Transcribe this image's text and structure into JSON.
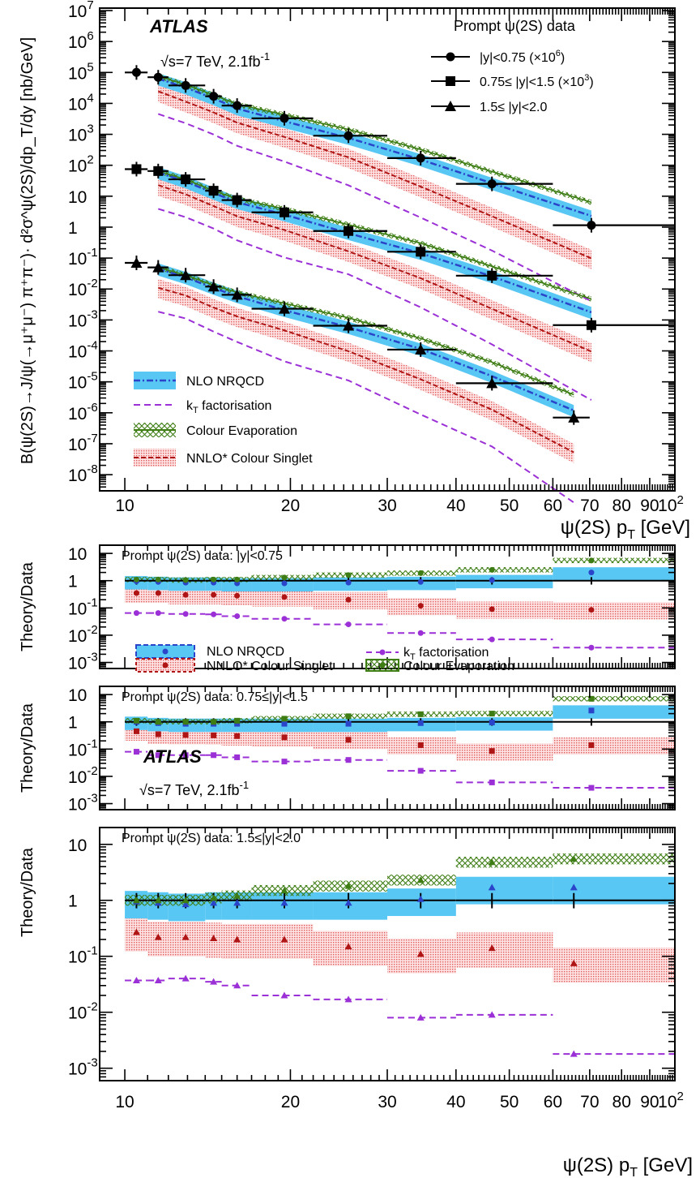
{
  "colors": {
    "nrqcd_fill": "#58c7f3",
    "nrqcd_line": "#2a45c9",
    "kt_line": "#9b30d6",
    "ceva_line": "#3d7d14",
    "cs_fill": "#f3a4a4",
    "cs_line": "#b01515",
    "data": "#000000"
  },
  "ticks": {
    "x": [
      "10",
      "20",
      "30",
      "40",
      "50",
      "60",
      "70",
      "80",
      "90",
      "10"
    ],
    "x_sup": "2",
    "y_main": [
      {
        "b": "10",
        "s": "7"
      },
      {
        "b": "10",
        "s": "6"
      },
      {
        "b": "10",
        "s": "5"
      },
      {
        "b": "10",
        "s": "4"
      },
      {
        "b": "10",
        "s": "3"
      },
      {
        "b": "10",
        "s": "2"
      },
      {
        "b": "10",
        "s": ""
      },
      {
        "b": "1",
        "s": ""
      },
      {
        "b": "10",
        "s": "-1"
      },
      {
        "b": "10",
        "s": "-2"
      },
      {
        "b": "10",
        "s": "-3"
      },
      {
        "b": "10",
        "s": "-4"
      },
      {
        "b": "10",
        "s": "-5"
      },
      {
        "b": "10",
        "s": "-6"
      },
      {
        "b": "10",
        "s": "-7"
      },
      {
        "b": "10",
        "s": "-8"
      }
    ],
    "y_ratio": [
      {
        "b": "10",
        "s": ""
      },
      {
        "b": "1",
        "s": ""
      },
      {
        "b": "10",
        "s": "-1"
      },
      {
        "b": "10",
        "s": "-2"
      },
      {
        "b": "10",
        "s": "-3"
      }
    ]
  },
  "main": {
    "experiment": "ATLAS",
    "energy_a": "√s=7 TeV, 2.1fb",
    "energy_sup": "-1",
    "ylabel": "B(ψ(2S)→J/ψ(→μ⁺μ⁻) π⁺π⁻)· d²σ^ψ(2S)/dp_T/dy [nb/GeV]",
    "xlabel_a": "ψ(2S) p",
    "xlabel_sub": "T",
    "xlabel_b": " [GeV]",
    "legend_data": {
      "title": "Prompt ψ(2S) data",
      "r1": "|y|<0.75 (×10",
      "r1_sup": "6",
      "r1_end": ")",
      "r2": "0.75≤ |y|<1.5 (×10",
      "r2_sup": "3",
      "r2_end": ")",
      "r3": "1.5≤ |y|<2.0"
    },
    "legend_theory": {
      "nrqcd": "NLO NRQCD",
      "kt_a": "k",
      "kt_sub": "T",
      "kt_b": " factorisation",
      "ceva": "Colour Evaporation",
      "cs": "NNLO* Colour Singlet"
    }
  },
  "ratio": {
    "ylabel": "Theory/Data",
    "panel1_label": "Prompt ψ(2S) data: |y|<0.75",
    "panel2_label": "Prompt ψ(2S) data: 0.75≤|y|<1.5",
    "panel3_label": "Prompt ψ(2S) data: 1.5≤|y|<2.0",
    "legend": {
      "nrqcd": "NLO NRQCD",
      "cs": "NNLO* Colour Singlet",
      "kt_a": "k",
      "kt_sub": "T",
      "kt_b": " factorisation",
      "ceva": "Colour Evaporation"
    },
    "experiment": "ATLAS",
    "energy_a": "√s=7 TeV, 2.1fb",
    "energy_sup": "-1"
  },
  "chart_data": [
    {
      "type": "scatter",
      "title": "",
      "xlabel": "ψ(2S) p_T [GeV]",
      "ylabel": "B(ψ(2S)→J/ψ(→μ⁺μ⁻) π⁺π⁻)· d²σ^ψ(2S)/dp_T/dy [nb/GeV]",
      "xscale": "log",
      "yscale": "log",
      "xlim": [
        9,
        100
      ],
      "ylim": [
        3e-09,
        12000000.0
      ],
      "legend_placement": "top-right (data), bottom-left (theory)",
      "bins": [
        [
          10,
          11
        ],
        [
          11,
          12
        ],
        [
          12,
          14
        ],
        [
          14,
          15
        ],
        [
          15,
          17
        ],
        [
          17,
          22
        ],
        [
          22,
          30
        ],
        [
          30,
          40
        ],
        [
          40,
          60
        ],
        [
          60,
          100
        ]
      ],
      "bins_last_region": [
        [
          10,
          11
        ],
        [
          11,
          12
        ],
        [
          12,
          14
        ],
        [
          14,
          15
        ],
        [
          15,
          17
        ],
        [
          17,
          22
        ],
        [
          22,
          30
        ],
        [
          30,
          40
        ],
        [
          40,
          60
        ],
        [
          60,
          70
        ]
      ],
      "series": [
        {
          "name": "|y|<0.75 (×10^6)",
          "marker": "circle",
          "x": [
            10.5,
            11.5,
            12.9,
            14.5,
            16.0,
            19.5,
            25.5,
            34.5,
            46.5,
            70.5
          ],
          "y": [
            100000.0,
            70000.0,
            38000.0,
            17000.0,
            8500.0,
            3300.0,
            900.0,
            170.0,
            25.0,
            1.15
          ]
        },
        {
          "name": "0.75≤ |y|<1.5 (×10^3)",
          "marker": "square",
          "x": [
            10.5,
            11.5,
            12.9,
            14.5,
            16.0,
            19.5,
            25.5,
            34.5,
            46.5,
            70.5
          ],
          "y": [
            75,
            65,
            35,
            15,
            7.5,
            3.0,
            0.75,
            0.16,
            0.027,
            0.00068
          ]
        },
        {
          "name": "1.5≤ |y|<2.0",
          "marker": "triangle",
          "x": [
            10.5,
            11.5,
            12.9,
            14.5,
            16.0,
            19.5,
            25.5,
            34.5,
            46.5,
            65.5
          ],
          "y": [
            0.07,
            0.05,
            0.028,
            0.012,
            0.0065,
            0.0023,
            0.00065,
            0.00011,
            9e-06,
            7e-07
          ]
        }
      ],
      "theory": [
        {
          "name": "NLO NRQCD",
          "band_center_at_pt": {
            "12": 1.0,
            "70": 1.8
          }
        },
        {
          "name": "k_T factorisation"
        },
        {
          "name": "Colour Evaporation"
        },
        {
          "name": "NNLO* Colour Singlet"
        }
      ]
    },
    {
      "type": "scatter",
      "title": "",
      "xlabel": "",
      "ylabel": "Theory/Data",
      "xscale": "log",
      "yscale": "log",
      "xlim": [
        9,
        100
      ],
      "ylim": [
        0.0006,
        20
      ],
      "region": "Prompt ψ(2S) data: |y|<0.75",
      "x": [
        10.5,
        11.5,
        12.9,
        14.5,
        16.0,
        19.5,
        25.5,
        34.5,
        46.5,
        70.5
      ],
      "series": [
        {
          "name": "NLO NRQCD",
          "values": [
            0.95,
            0.9,
            0.85,
            0.85,
            0.8,
            0.8,
            0.85,
            0.9,
            1.05,
            2.0
          ]
        },
        {
          "name": "NNLO* Colour Singlet",
          "values": [
            0.35,
            0.35,
            0.3,
            0.3,
            0.28,
            0.25,
            0.2,
            0.12,
            0.09,
            0.085
          ]
        },
        {
          "name": "k_T factorisation",
          "values": [
            0.065,
            0.065,
            0.06,
            0.058,
            0.05,
            0.04,
            0.025,
            0.012,
            0.007,
            0.0035
          ]
        },
        {
          "name": "Colour Evaporation",
          "values": [
            1.1,
            1.1,
            1.05,
            1.1,
            1.1,
            1.3,
            1.6,
            1.9,
            2.5,
            5.5
          ]
        },
        {
          "name": "data",
          "values": [
            1,
            1,
            1,
            1,
            1,
            1,
            1,
            1,
            1,
            1
          ]
        }
      ]
    },
    {
      "type": "scatter",
      "title": "",
      "xlabel": "",
      "ylabel": "Theory/Data",
      "xscale": "log",
      "yscale": "log",
      "xlim": [
        9,
        100
      ],
      "ylim": [
        0.0006,
        20
      ],
      "region": "Prompt ψ(2S) data: 0.75≤|y|<1.5",
      "x": [
        10.5,
        11.5,
        12.9,
        14.5,
        16.0,
        19.5,
        25.5,
        34.5,
        46.5,
        70.5
      ],
      "series": [
        {
          "name": "NLO NRQCD",
          "values": [
            1.0,
            0.9,
            0.85,
            0.85,
            0.85,
            0.85,
            0.85,
            0.9,
            0.95,
            2.6
          ]
        },
        {
          "name": "NNLO* Colour Singlet",
          "values": [
            0.45,
            0.35,
            0.33,
            0.32,
            0.3,
            0.27,
            0.22,
            0.14,
            0.085,
            0.14
          ]
        },
        {
          "name": "k_T factorisation",
          "values": [
            0.08,
            0.06,
            0.06,
            0.06,
            0.05,
            0.035,
            0.04,
            0.016,
            0.006,
            0.0038
          ]
        },
        {
          "name": "Colour Evaporation",
          "values": [
            1.1,
            1.0,
            1.0,
            1.0,
            1.1,
            1.3,
            1.6,
            1.9,
            2.0,
            7.0
          ]
        },
        {
          "name": "data",
          "values": [
            1,
            1,
            1,
            1,
            1,
            1,
            1,
            1,
            1,
            1
          ]
        }
      ]
    },
    {
      "type": "scatter",
      "title": "",
      "xlabel": "ψ(2S) p_T [GeV]",
      "ylabel": "Theory/Data",
      "xscale": "log",
      "yscale": "log",
      "xlim": [
        9,
        100
      ],
      "ylim": [
        0.0006,
        20
      ],
      "region": "Prompt ψ(2S) data: 1.5≤|y|<2.0",
      "x": [
        10.5,
        11.5,
        12.9,
        14.5,
        16.0,
        19.5,
        25.5,
        34.5,
        46.5,
        65.5
      ],
      "series": [
        {
          "name": "NLO NRQCD",
          "values": [
            0.95,
            0.9,
            0.85,
            0.9,
            0.9,
            0.9,
            0.9,
            1.05,
            1.7,
            1.7
          ]
        },
        {
          "name": "NNLO* Colour Singlet",
          "values": [
            0.27,
            0.22,
            0.22,
            0.21,
            0.2,
            0.2,
            0.15,
            0.11,
            0.14,
            0.075
          ]
        },
        {
          "name": "k_T factorisation",
          "values": [
            0.037,
            0.037,
            0.04,
            0.035,
            0.03,
            0.02,
            0.017,
            0.008,
            0.009,
            0.0018
          ]
        },
        {
          "name": "Colour Evaporation",
          "values": [
            1.0,
            1.0,
            1.0,
            1.1,
            1.2,
            1.5,
            1.8,
            2.3,
            4.8,
            5.5
          ]
        },
        {
          "name": "data",
          "values": [
            1,
            1,
            1,
            1,
            1,
            1,
            1,
            1,
            1,
            1
          ]
        }
      ]
    }
  ]
}
